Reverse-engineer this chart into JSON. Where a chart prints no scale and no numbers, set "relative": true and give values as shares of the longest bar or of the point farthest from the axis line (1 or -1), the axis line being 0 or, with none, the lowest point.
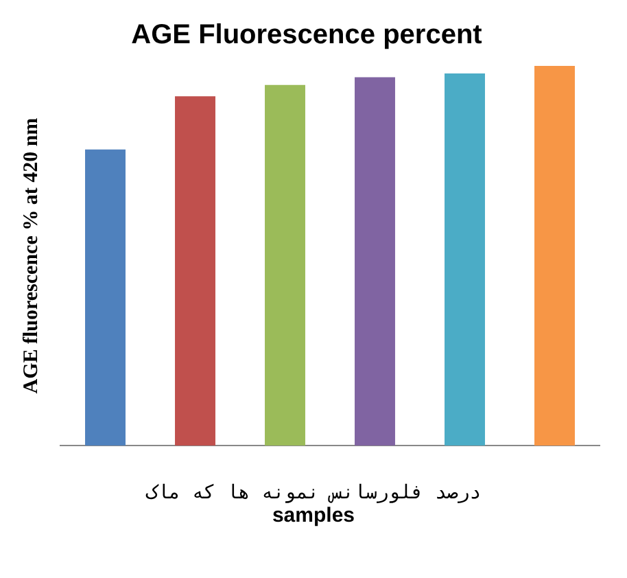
{
  "chart_data": {
    "type": "bar",
    "title": "AGE Fluorescence percent",
    "ylabel": "AGE fluorescence % at 420 nm",
    "xlabel": "samples",
    "categories": [
      null,
      null,
      null,
      null,
      null,
      null
    ],
    "relative": true,
    "values": [
      0.78,
      0.92,
      0.95,
      0.97,
      0.98,
      1
    ],
    "colors": [
      "#4f81bd",
      "#c0504d",
      "#9bbb59",
      "#8064a2",
      "#4bacc6",
      "#f79646"
    ],
    "annotations": [
      "درصد فلورسانس نمونه ها که ماک"
    ],
    "grid": false,
    "legend": false
  }
}
